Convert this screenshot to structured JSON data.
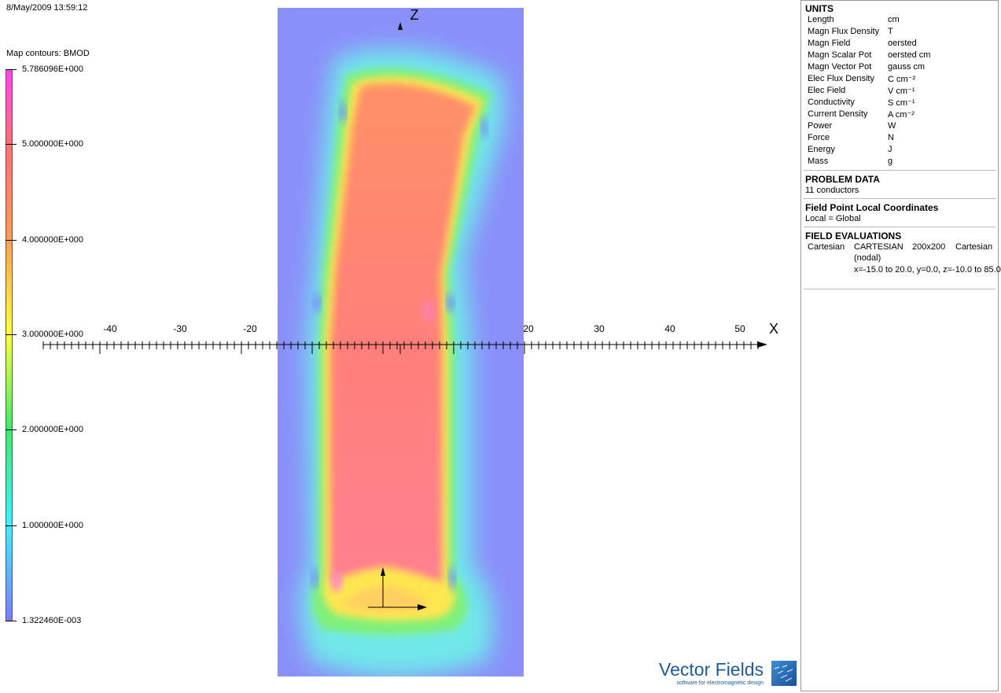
{
  "timestamp": "8/May/2009 13:59:12",
  "legend": {
    "title": "Map contours: BMOD",
    "labels": [
      "5.786096E+000",
      "5.000000E+000",
      "4.000000E+000",
      "3.000000E+000",
      "2.000000E+000",
      "1.000000E+000",
      "1.322460E-003"
    ]
  },
  "axes": {
    "z_label": "Z",
    "x_label": "X",
    "x_tick_labels": [
      "-40",
      "-30",
      "-20",
      "",
      "20",
      "30",
      "40",
      "50"
    ]
  },
  "units": {
    "title": "UNITS",
    "rows": [
      {
        "name": "Length",
        "value": "cm"
      },
      {
        "name": "Magn Flux Density",
        "value": "T"
      },
      {
        "name": "Magn Field",
        "value": "oersted"
      },
      {
        "name": "Magn Scalar Pot",
        "value": "oersted cm"
      },
      {
        "name": "Magn Vector Pot",
        "value": "gauss cm"
      },
      {
        "name": "Elec Flux Density",
        "value": "C cm⁻²"
      },
      {
        "name": "Elec Field",
        "value": "V cm⁻¹"
      },
      {
        "name": "Conductivity",
        "value": "S cm⁻¹"
      },
      {
        "name": "Current Density",
        "value": "A cm⁻²"
      },
      {
        "name": "Power",
        "value": "W"
      },
      {
        "name": "Force",
        "value": "N"
      },
      {
        "name": "Energy",
        "value": "J"
      },
      {
        "name": "Mass",
        "value": "g"
      }
    ]
  },
  "problem_data": {
    "title": "PROBLEM DATA",
    "text": "11 conductors"
  },
  "local_coords": {
    "title": "Field Point Local Coordinates",
    "text": "Local = Global"
  },
  "field_eval": {
    "title": "FIELD EVALUATIONS",
    "col1": "Cartesian",
    "col2": "CARTESIAN",
    "col3": "200x200",
    "col4": "Cartesian",
    "nodal": "(nodal)",
    "range": "x=-15.0 to 20.0, y=0.0, z=-10.0 to 85.0"
  },
  "logo": {
    "name": "Vector Fields",
    "tagline": "software for electromagnetic design",
    "icon": "vector-fields-logo-icon"
  },
  "colors": {
    "background_field": "#8a90fa",
    "band": "#ff8078"
  }
}
